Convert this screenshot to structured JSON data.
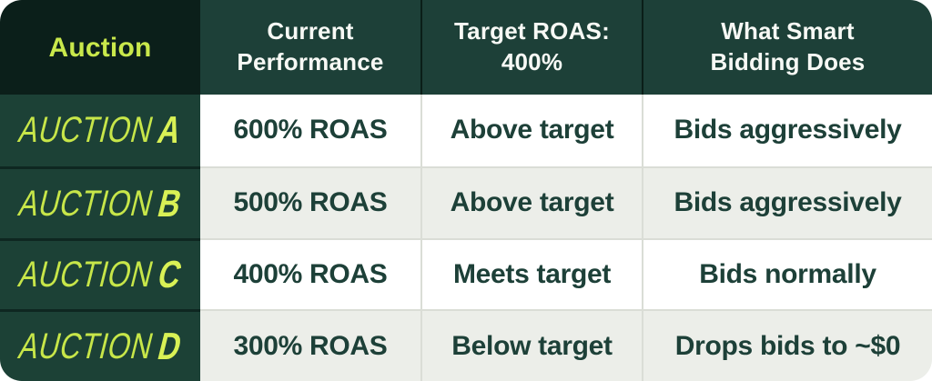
{
  "table": {
    "header": {
      "auction": "Auction",
      "columns": [
        "Current\nPerformance",
        "Target ROAS:\n400%",
        "What Smart\nBidding Does"
      ]
    },
    "rows": [
      {
        "auction_word": "AUCTION",
        "auction_letter": "A",
        "performance": "600% ROAS",
        "target_status": "Above target",
        "smart_bidding": "Bids aggressively"
      },
      {
        "auction_word": "AUCTION",
        "auction_letter": "B",
        "performance": "500% ROAS",
        "target_status": "Above target",
        "smart_bidding": "Bids aggressively"
      },
      {
        "auction_word": "AUCTION",
        "auction_letter": "C",
        "performance": "400% ROAS",
        "target_status": "Meets target",
        "smart_bidding": "Bids normally"
      },
      {
        "auction_word": "AUCTION",
        "auction_letter": "D",
        "performance": "300% ROAS",
        "target_status": "Below target",
        "smart_bidding": "Drops bids to ~$0"
      }
    ]
  },
  "colors": {
    "header_dark": "#0B1F1A",
    "header_green": "#1D4038",
    "first_column_green": "#1C4136",
    "accent_yellow_green": "#C9E84B",
    "accent_letter_yellow": "#D9F155",
    "body_text_green": "#1D4038",
    "row_alt_gray": "#ECEEE9",
    "separator_light": "#DADDD6",
    "separator_dark": "#0E2721"
  },
  "chart_data": {
    "type": "table",
    "columns": [
      "Auction",
      "Current Performance",
      "Target ROAS: 400%",
      "What Smart Bidding Does"
    ],
    "rows": [
      [
        "AUCTION A",
        "600% ROAS",
        "Above target",
        "Bids aggressively"
      ],
      [
        "AUCTION B",
        "500% ROAS",
        "Above target",
        "Bids aggressively"
      ],
      [
        "AUCTION C",
        "400% ROAS",
        "Meets target",
        "Bids normally"
      ],
      [
        "AUCTION D",
        "300% ROAS",
        "Below target",
        "Drops bids to ~$0"
      ]
    ],
    "target_roas_percent": 400,
    "current_roas_percent": [
      600,
      500,
      400,
      300
    ]
  }
}
